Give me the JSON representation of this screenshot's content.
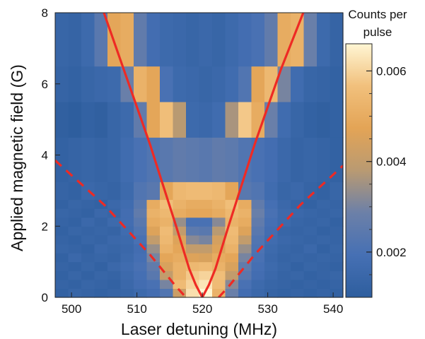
{
  "chart_data": {
    "type": "heatmap",
    "title": "",
    "xlabel": "Laser detuning (MHz)",
    "ylabel": "Applied magnetic field (G)",
    "xlim": [
      497.5,
      541.5
    ],
    "ylim": [
      0,
      8
    ],
    "x_ticks": [
      "500",
      "510",
      "520",
      "530",
      "540"
    ],
    "x_tick_values": [
      500,
      510,
      520,
      530,
      540
    ],
    "y_ticks": [
      "0",
      "2",
      "4",
      "6",
      "8"
    ],
    "y_tick_values": [
      0,
      2,
      4,
      6,
      8
    ],
    "x_centers": [
      498.5,
      500.5,
      502.5,
      504.5,
      506.5,
      508.5,
      510.5,
      512.5,
      514.5,
      516.5,
      518.5,
      520.5,
      522.5,
      524.5,
      526.5,
      528.5,
      530.5,
      532.5,
      534.5,
      536.5,
      538.5,
      540.5
    ],
    "x_bin_width": 2,
    "y_edges": [
      0,
      0.25,
      0.5,
      0.75,
      1.0,
      1.25,
      1.5,
      1.75,
      2.0,
      2.25,
      2.5,
      2.75,
      3.25,
      4.5,
      5.5,
      6.5,
      8
    ],
    "z_values": [
      [
        0.0012,
        0.0014,
        0.0013,
        0.0012,
        0.0013,
        0.0014,
        0.0016,
        0.0018,
        0.0022,
        0.0042,
        0.0062,
        0.0066,
        0.0052,
        0.0028,
        0.0018,
        0.0015,
        0.0013,
        0.0012,
        0.0013,
        0.0012,
        0.0013,
        0.0012
      ],
      [
        0.0013,
        0.0012,
        0.0014,
        0.0013,
        0.0012,
        0.0015,
        0.0018,
        0.002,
        0.003,
        0.0055,
        0.006,
        0.0063,
        0.0055,
        0.0032,
        0.002,
        0.0016,
        0.0014,
        0.0013,
        0.0012,
        0.0013,
        0.0012,
        0.0013
      ],
      [
        0.0012,
        0.0014,
        0.0012,
        0.0014,
        0.0013,
        0.0016,
        0.0019,
        0.0024,
        0.004,
        0.0052,
        0.0058,
        0.006,
        0.0056,
        0.004,
        0.0024,
        0.0018,
        0.0015,
        0.0013,
        0.0014,
        0.0012,
        0.0013,
        0.0014
      ],
      [
        0.0013,
        0.0012,
        0.0014,
        0.0012,
        0.0015,
        0.0017,
        0.002,
        0.0026,
        0.0045,
        0.0052,
        0.0054,
        0.0055,
        0.0052,
        0.0045,
        0.0026,
        0.0019,
        0.0016,
        0.0014,
        0.0012,
        0.0014,
        0.0013,
        0.0012
      ],
      [
        0.0012,
        0.0015,
        0.0013,
        0.0014,
        0.0013,
        0.0016,
        0.0019,
        0.003,
        0.0048,
        0.005,
        0.0046,
        0.0045,
        0.005,
        0.0048,
        0.003,
        0.002,
        0.0015,
        0.0013,
        0.0014,
        0.0013,
        0.0014,
        0.0013
      ],
      [
        0.0014,
        0.0013,
        0.0012,
        0.0015,
        0.0014,
        0.0015,
        0.0018,
        0.0034,
        0.0052,
        0.0048,
        0.004,
        0.004,
        0.0046,
        0.0052,
        0.0034,
        0.0021,
        0.0016,
        0.0014,
        0.0013,
        0.0015,
        0.0012,
        0.0014
      ],
      [
        0.0013,
        0.0012,
        0.0014,
        0.0013,
        0.0015,
        0.0016,
        0.002,
        0.004,
        0.0054,
        0.0046,
        0.0032,
        0.003,
        0.0044,
        0.0054,
        0.004,
        0.0022,
        0.0017,
        0.0015,
        0.0014,
        0.0013,
        0.0014,
        0.0013
      ],
      [
        0.0012,
        0.0014,
        0.0013,
        0.0014,
        0.0013,
        0.0017,
        0.0022,
        0.0046,
        0.0055,
        0.004,
        0.0025,
        0.0024,
        0.0038,
        0.0055,
        0.0046,
        0.0024,
        0.0018,
        0.0014,
        0.0013,
        0.0014,
        0.0012,
        0.0013
      ],
      [
        0.0013,
        0.0012,
        0.0015,
        0.0013,
        0.0016,
        0.0018,
        0.0024,
        0.005,
        0.0052,
        0.0034,
        0.002,
        0.002,
        0.0032,
        0.0052,
        0.005,
        0.0026,
        0.0019,
        0.0016,
        0.0014,
        0.0013,
        0.0014,
        0.0012
      ],
      [
        0.0014,
        0.0013,
        0.0012,
        0.0015,
        0.0014,
        0.0018,
        0.0026,
        0.0052,
        0.0054,
        0.005,
        0.0048,
        0.0048,
        0.005,
        0.0054,
        0.0052,
        0.0028,
        0.002,
        0.0016,
        0.0015,
        0.0014,
        0.0013,
        0.0014
      ],
      [
        0.0012,
        0.0014,
        0.0013,
        0.0012,
        0.0015,
        0.0017,
        0.0024,
        0.005,
        0.0056,
        0.0052,
        0.005,
        0.005,
        0.0052,
        0.0056,
        0.005,
        0.0026,
        0.0019,
        0.0015,
        0.0013,
        0.0012,
        0.0014,
        0.0013
      ],
      [
        0.0013,
        0.0012,
        0.0015,
        0.0014,
        0.0013,
        0.0016,
        0.0022,
        0.0024,
        0.0048,
        0.0054,
        0.0055,
        0.0055,
        0.0054,
        0.0048,
        0.0024,
        0.0022,
        0.0017,
        0.0014,
        0.0015,
        0.0013,
        0.0012,
        0.0014
      ],
      [
        0.0012,
        0.0013,
        0.0014,
        0.0013,
        0.0014,
        0.0017,
        0.002,
        0.0022,
        0.0024,
        0.0026,
        0.0025,
        0.0024,
        0.0026,
        0.0025,
        0.0022,
        0.002,
        0.0018,
        0.0015,
        0.0013,
        0.0014,
        0.0013,
        0.0012
      ],
      [
        0.0011,
        0.001,
        0.0012,
        0.0011,
        0.0014,
        0.0016,
        0.0026,
        0.0048,
        0.0056,
        0.0038,
        0.0016,
        0.0015,
        0.0017,
        0.0036,
        0.0058,
        0.005,
        0.0028,
        0.0017,
        0.0014,
        0.0012,
        0.0011,
        0.0012
      ],
      [
        0.0013,
        0.0012,
        0.0014,
        0.0015,
        0.0016,
        0.0028,
        0.0052,
        0.0048,
        0.002,
        0.0016,
        0.0015,
        0.0014,
        0.0015,
        0.0017,
        0.0022,
        0.0048,
        0.0054,
        0.003,
        0.0017,
        0.0014,
        0.0013,
        0.0012
      ],
      [
        0.0014,
        0.0013,
        0.0016,
        0.0024,
        0.0048,
        0.005,
        0.0026,
        0.0018,
        0.0016,
        0.0015,
        0.0014,
        0.0015,
        0.0014,
        0.0016,
        0.0018,
        0.002,
        0.0026,
        0.005,
        0.0052,
        0.0028,
        0.0016,
        0.0013
      ]
    ],
    "curves": [
      {
        "style": "solid",
        "x": [
          504,
          508,
          512,
          516,
          518,
          519,
          520
        ],
        "y": [
          8.5,
          6.4,
          4.3,
          2.0,
          0.8,
          0.35,
          0
        ]
      },
      {
        "style": "solid",
        "x": [
          520,
          521,
          522,
          524,
          528,
          532,
          536.5
        ],
        "y": [
          0,
          0.35,
          0.8,
          2.0,
          4.3,
          6.4,
          8.5
        ]
      },
      {
        "style": "dashed",
        "x": [
          497.5,
          505,
          512,
          516,
          517.5
        ],
        "y": [
          3.85,
          2.6,
          1.2,
          0.3,
          0
        ]
      },
      {
        "style": "dashed",
        "x": [
          522.5,
          524,
          528,
          535,
          541.5
        ],
        "y": [
          0,
          0.3,
          1.2,
          2.6,
          3.7
        ]
      }
    ],
    "colorbar": {
      "title_lines": [
        "Counts per",
        "pulse"
      ],
      "range": [
        0.001,
        0.0066
      ],
      "tick_labels": [
        "0.002",
        "0.004",
        "0.006"
      ],
      "tick_values": [
        0.002,
        0.004,
        0.006
      ]
    },
    "colors": {
      "curve": "#ee2a24",
      "colormap": [
        "#2e5e9e",
        "#4670b4",
        "#6c80a8",
        "#b99a72",
        "#e3a456",
        "#f1c07c",
        "#fff6d4"
      ]
    }
  }
}
